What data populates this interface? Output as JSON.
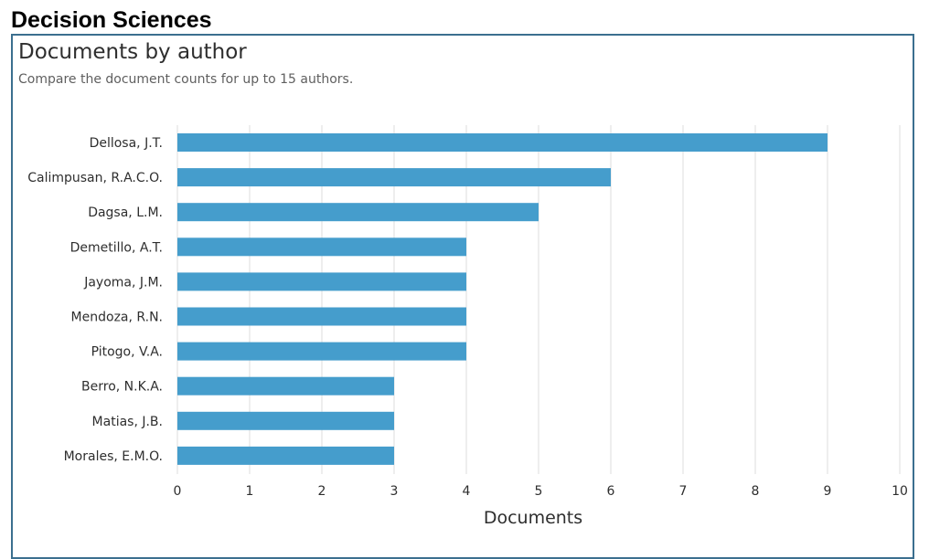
{
  "page": {
    "heading": "Decision Sciences"
  },
  "panel": {
    "title": "Documents by author",
    "subtitle": "Compare the document counts for up to 15 authors."
  },
  "colors": {
    "bar": "#459dcc",
    "grid": "#dcdcdc",
    "border": "#3b6f8f"
  },
  "chart_data": {
    "type": "bar",
    "orientation": "horizontal",
    "categories": [
      "Dellosa, J.T.",
      "Calimpusan, R.A.C.O.",
      "Dagsa, L.M.",
      "Demetillo, A.T.",
      "Jayoma, J.M.",
      "Mendoza, R.N.",
      "Pitogo, V.A.",
      "Berro, N.K.A.",
      "Matias, J.B.",
      "Morales, E.M.O."
    ],
    "values": [
      9,
      6,
      5,
      4,
      4,
      4,
      4,
      3,
      3,
      3
    ],
    "xlabel": "Documents",
    "ylabel": "",
    "xlim": [
      0,
      10
    ],
    "xticks": [
      "0",
      "1",
      "2",
      "3",
      "4",
      "5",
      "6",
      "7",
      "8",
      "9",
      "10"
    ],
    "grid": true,
    "legend": "none"
  }
}
